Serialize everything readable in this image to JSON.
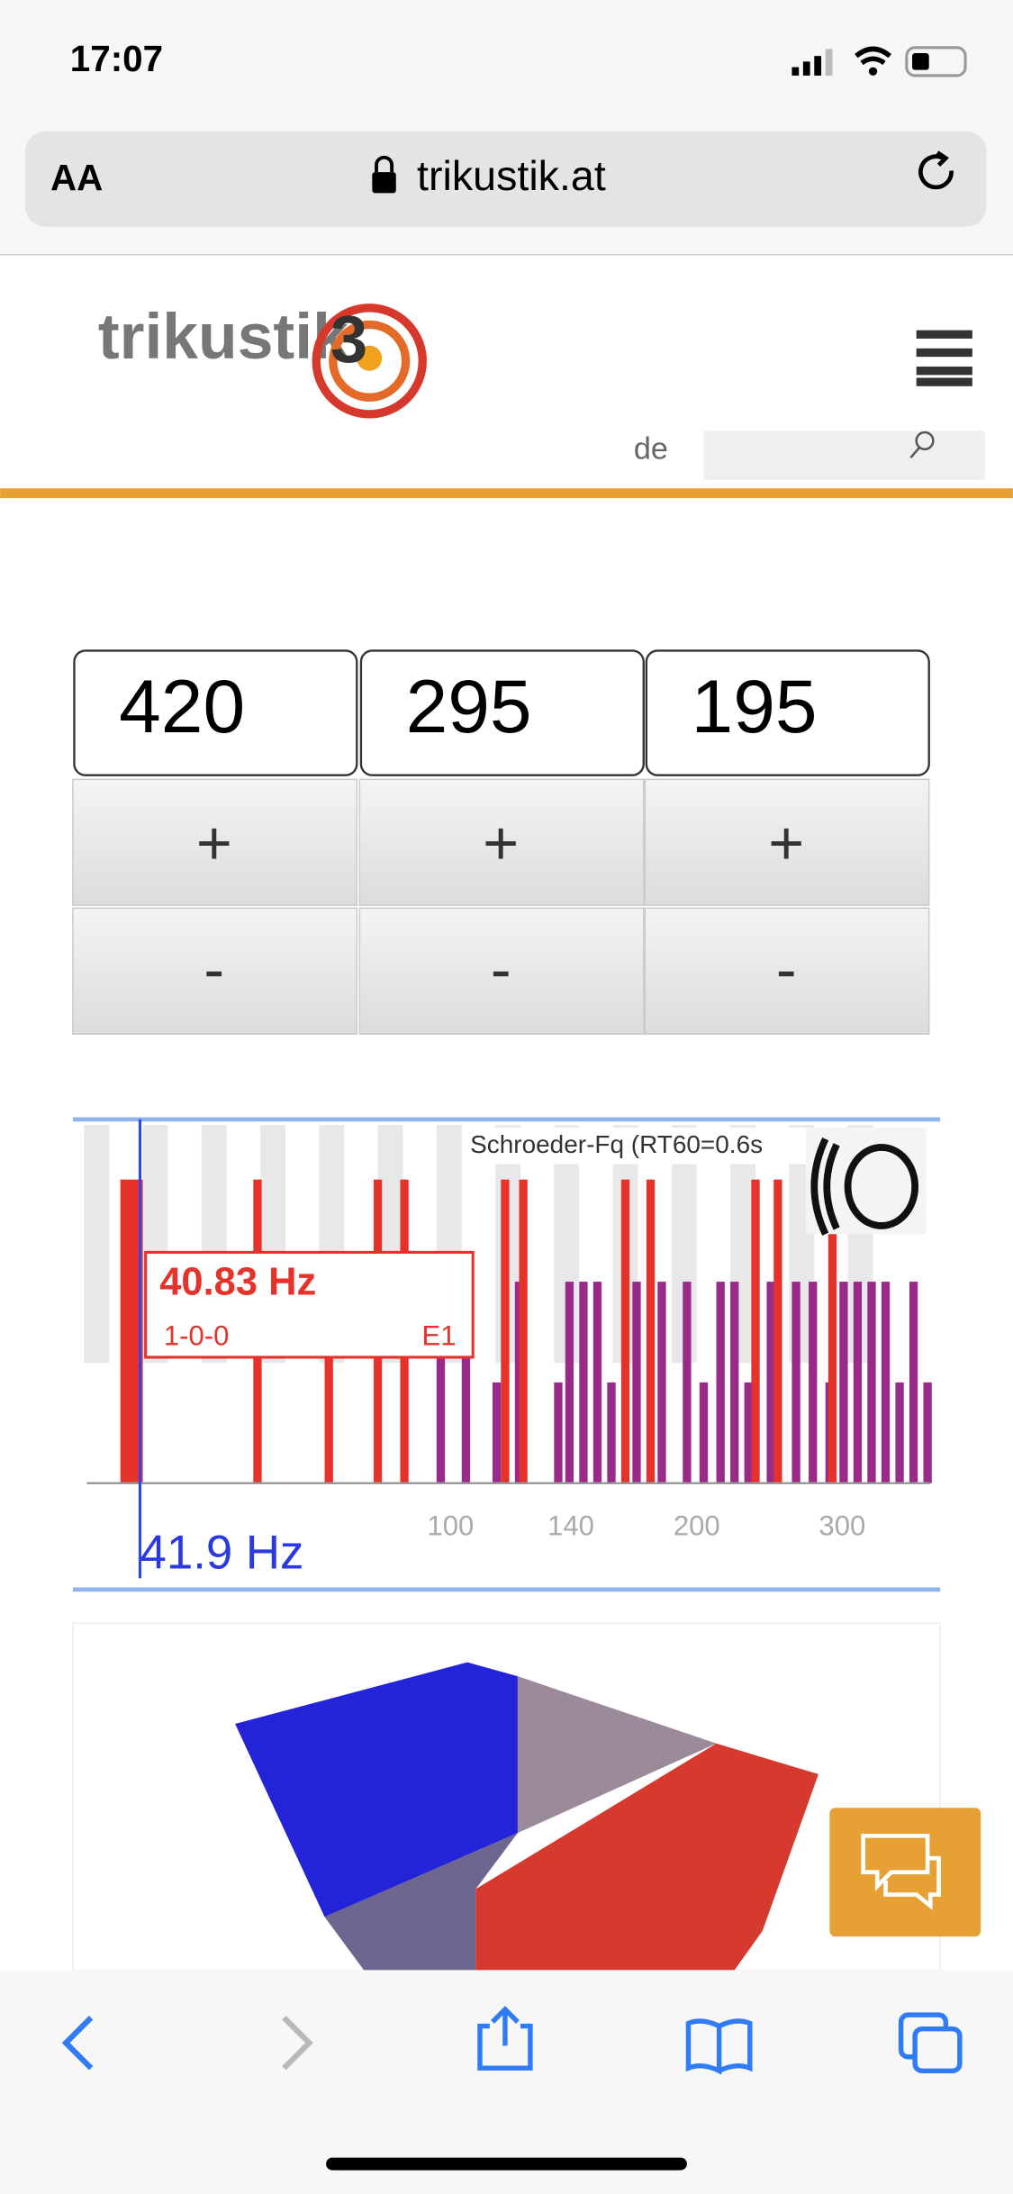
{
  "status_bar": {
    "time": "17:07"
  },
  "browser": {
    "text_size": "AA",
    "url": "trikustik.at"
  },
  "header": {
    "logo": "trikustik",
    "logo_number": "3",
    "language": "de"
  },
  "dimensions": {
    "fields": [
      "420",
      "295",
      "195"
    ],
    "increment": "+",
    "decrement": "-"
  },
  "mode_chart": {
    "schroeder_label": "Schroeder-Fq (RT60=0.6s",
    "tooltip": {
      "frequency": "40.83 Hz",
      "mode": "1-0-0",
      "label": "E1"
    },
    "axis_labels": [
      "100",
      "140",
      "200",
      "300"
    ],
    "cursor_frequency": "41.9 Hz"
  }
}
